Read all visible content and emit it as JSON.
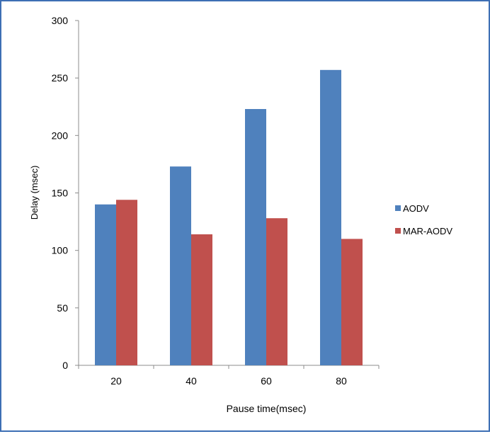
{
  "chart_data": {
    "type": "bar",
    "title": "",
    "xlabel": "Pause time(msec)",
    "ylabel": "Delay (msec)",
    "categories": [
      "20",
      "40",
      "60",
      "80"
    ],
    "series": [
      {
        "name": "AODV",
        "values": [
          140,
          173,
          223,
          257
        ],
        "color": "#4f81bd"
      },
      {
        "name": "MAR-AODV",
        "values": [
          144,
          114,
          128,
          110
        ],
        "color": "#c0504d"
      }
    ],
    "ylim": [
      0,
      300
    ],
    "yticks": [
      0,
      50,
      100,
      150,
      200,
      250,
      300
    ],
    "ytick_labels": [
      "0",
      "50",
      "100",
      "150",
      "200",
      "250",
      "300"
    ],
    "grid": false,
    "legend_position": "right"
  },
  "colors": {
    "frame_border": "#3d6fb4",
    "axis_line": "#8c8c8c",
    "text": "#000000"
  }
}
